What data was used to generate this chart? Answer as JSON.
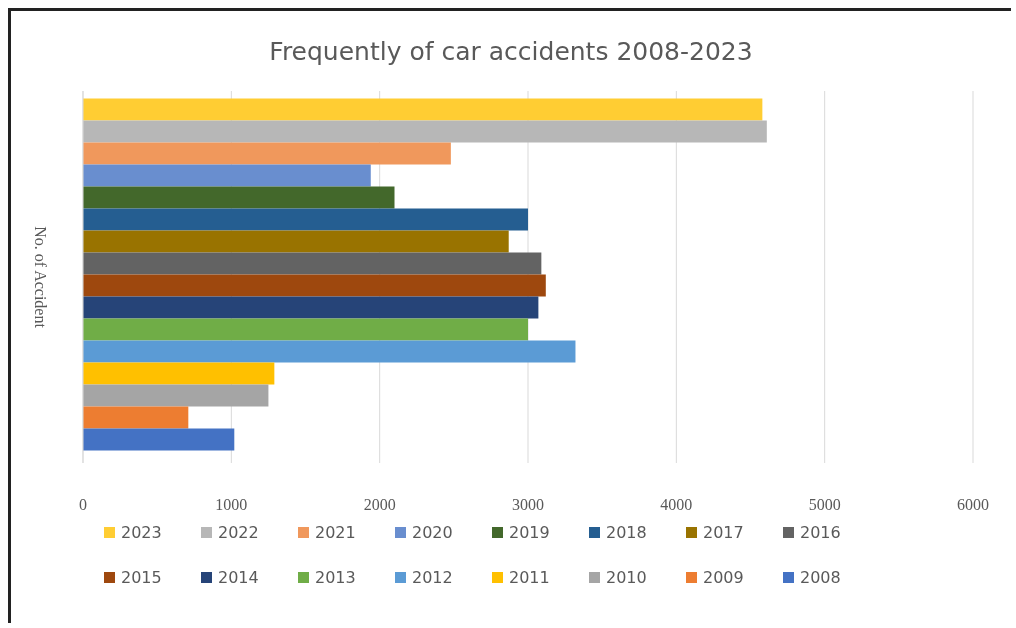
{
  "chart_data": {
    "type": "bar",
    "orientation": "horizontal",
    "title": "Frequently of car accidents 2008-2023",
    "ylabel": "No. of Accident",
    "categories": [
      null
    ],
    "series": [
      {
        "name": "2023",
        "color": "#ffcd33",
        "values": [
          4580
        ]
      },
      {
        "name": "2022",
        "color": "#b7b7b7",
        "values": [
          4610
        ]
      },
      {
        "name": "2021",
        "color": "#f0985c",
        "values": [
          2480
        ]
      },
      {
        "name": "2020",
        "color": "#698ecf",
        "values": [
          1940
        ]
      },
      {
        "name": "2019",
        "color": "#43682b",
        "values": [
          2100
        ]
      },
      {
        "name": "2018",
        "color": "#255e91",
        "values": [
          3000
        ]
      },
      {
        "name": "2017",
        "color": "#997300",
        "values": [
          2870
        ]
      },
      {
        "name": "2016",
        "color": "#636363",
        "values": [
          3090
        ]
      },
      {
        "name": "2015",
        "color": "#9e480e",
        "values": [
          3120
        ]
      },
      {
        "name": "2014",
        "color": "#264478",
        "values": [
          3070
        ]
      },
      {
        "name": "2013",
        "color": "#70ad47",
        "values": [
          3000
        ]
      },
      {
        "name": "2012",
        "color": "#5b9bd5",
        "values": [
          3320
        ]
      },
      {
        "name": "2011",
        "color": "#ffc000",
        "values": [
          1290
        ]
      },
      {
        "name": "2010",
        "color": "#a5a5a5",
        "values": [
          1250
        ]
      },
      {
        "name": "2009",
        "color": "#ed7d31",
        "values": [
          710
        ]
      },
      {
        "name": "2008",
        "color": "#4472c4",
        "values": [
          1020
        ]
      }
    ],
    "xlim": [
      0,
      6000
    ],
    "xticks": [
      0,
      1000,
      2000,
      3000,
      4000,
      5000,
      6000
    ],
    "grid": "x",
    "legend": "bottom"
  }
}
